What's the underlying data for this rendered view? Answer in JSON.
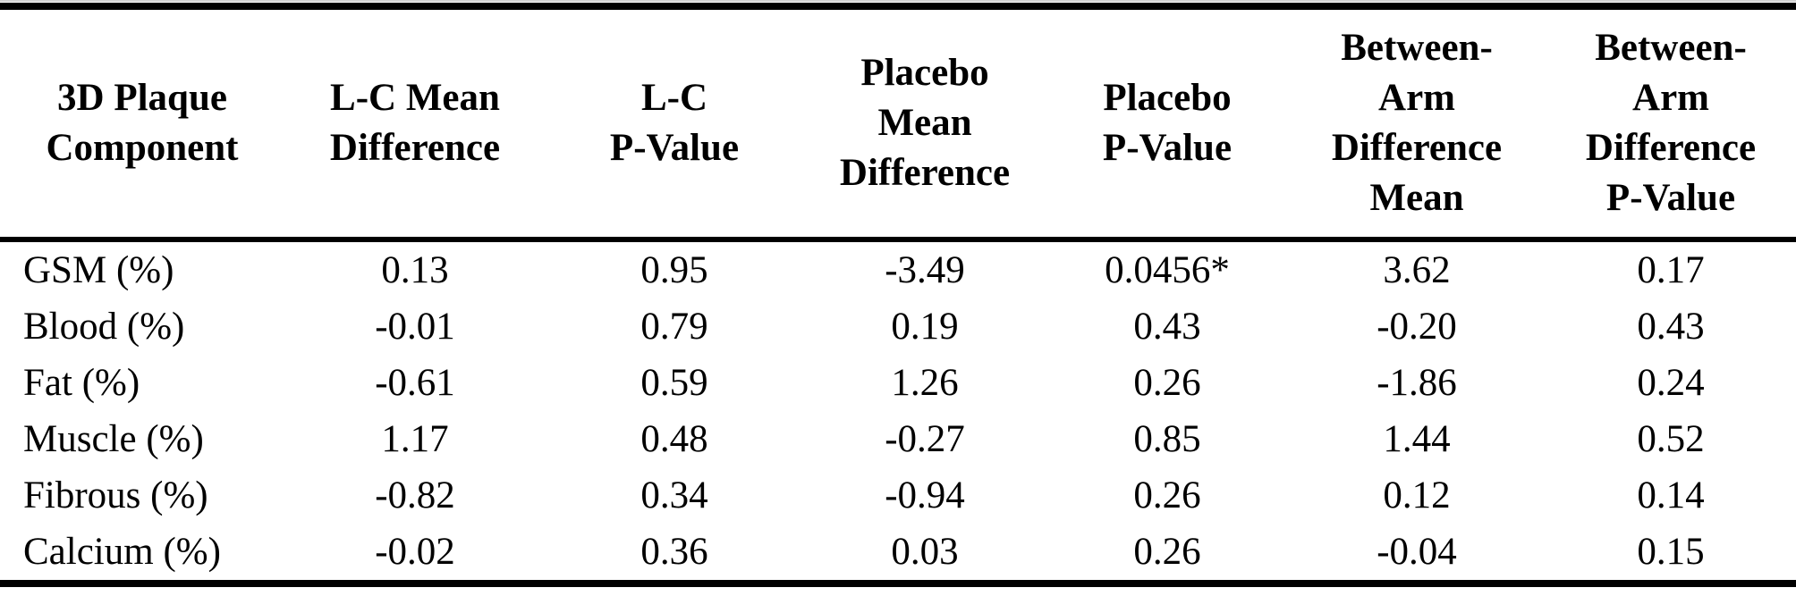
{
  "table": {
    "title": "3D plaque component differences table",
    "columns": [
      {
        "id": "component",
        "label": "3D Plaque\nComponent"
      },
      {
        "id": "lc-mean-difference",
        "label": "L-C Mean\nDifference"
      },
      {
        "id": "lc-p-value",
        "label": "L-C\nP-Value"
      },
      {
        "id": "placebo-mean-difference",
        "label": "Placebo\nMean\nDifference"
      },
      {
        "id": "placebo-p-value",
        "label": "Placebo\nP-Value"
      },
      {
        "id": "between-arm-difference-mean",
        "label": "Between-\nArm\nDifference\nMean"
      },
      {
        "id": "between-arm-difference-p-value",
        "label": "Between-\nArm\nDifference\nP-Value"
      }
    ],
    "rows": [
      {
        "component": "GSM (%)",
        "values": [
          "0.13",
          "0.95",
          "-3.49",
          "0.0456*",
          "3.62",
          "0.17"
        ]
      },
      {
        "component": "Blood (%)",
        "values": [
          "-0.01",
          "0.79",
          "0.19",
          "0.43",
          "-0.20",
          "0.43"
        ]
      },
      {
        "component": "Fat (%)",
        "values": [
          "-0.61",
          "0.59",
          "1.26",
          "0.26",
          "-1.86",
          "0.24"
        ]
      },
      {
        "component": "Muscle (%)",
        "values": [
          "1.17",
          "0.48",
          "-0.27",
          "0.85",
          "1.44",
          "0.52"
        ]
      },
      {
        "component": "Fibrous (%)",
        "values": [
          "-0.82",
          "0.34",
          "-0.94",
          "0.26",
          "0.12",
          "0.14"
        ]
      },
      {
        "component": "Calcium (%)",
        "values": [
          "-0.02",
          "0.36",
          "0.03",
          "0.26",
          "-0.04",
          "0.15"
        ]
      }
    ],
    "notes": {
      "significance_marker": "*"
    },
    "colors": {
      "text": "#000000",
      "background": "#ffffff",
      "rule": "#000000"
    }
  }
}
